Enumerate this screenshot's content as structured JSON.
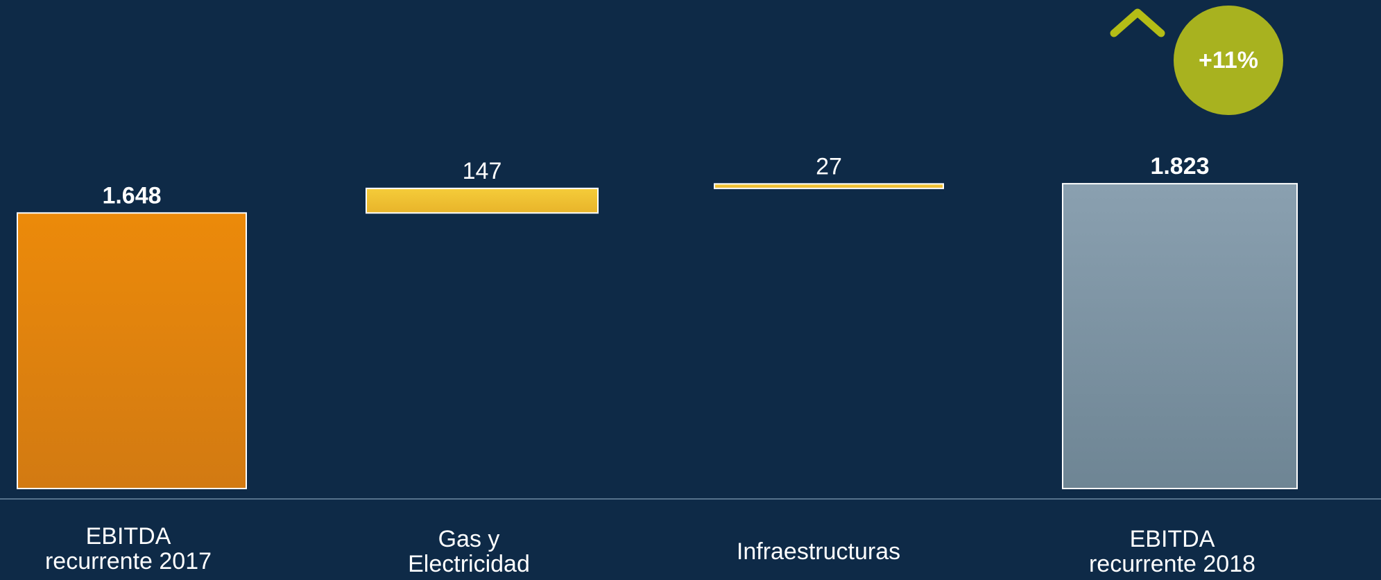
{
  "colors": {
    "background": "#0e2a47",
    "start_bar": "#e8870c",
    "delta_bar": "#f0c030",
    "end_bar": "#7f95a4",
    "accent": "#a8b21f",
    "text": "#ffffff"
  },
  "badge": {
    "label": "+11%",
    "icon": "chevron-up-icon"
  },
  "chart_data": {
    "type": "bar",
    "subtype": "waterfall",
    "categories": [
      "EBITDA\nrecurrente 2017",
      "Gas y\nElectricidad",
      "Infraestructuras",
      "EBITDA\nrecurrente 2018"
    ],
    "values": [
      1648,
      147,
      27,
      1823
    ],
    "value_labels": [
      "1.648",
      "147",
      "27",
      "1.823"
    ],
    "kinds": [
      "total",
      "delta",
      "delta",
      "total"
    ],
    "ylim": [
      0,
      1900
    ],
    "grid": false,
    "legend": "none"
  }
}
